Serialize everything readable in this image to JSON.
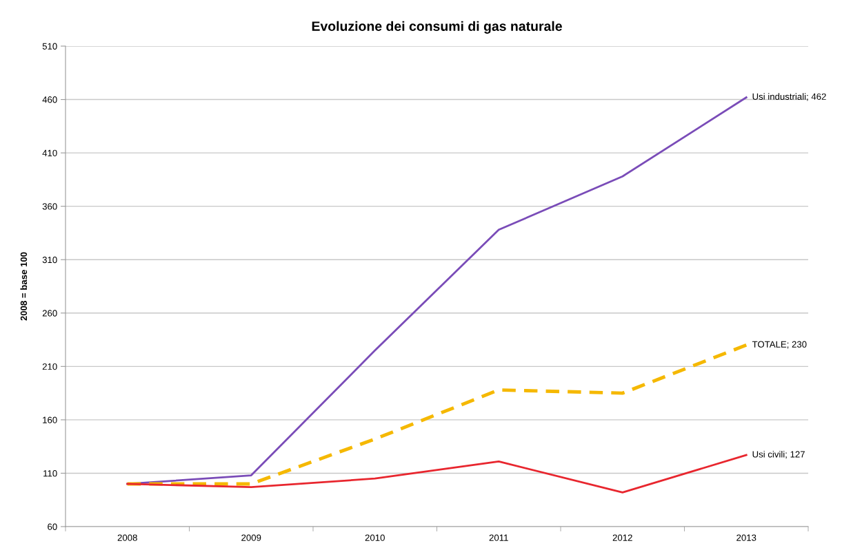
{
  "chart_data": {
    "type": "line",
    "title": "Evoluzione dei consumi di gas naturale",
    "ylabel": "2008 = base 100",
    "categories": [
      "2008",
      "2009",
      "2010",
      "2011",
      "2012",
      "2013"
    ],
    "series": [
      {
        "color": "#7a4cb8",
        "values": [
          100,
          108,
          225,
          338,
          388,
          462
        ],
        "value_labels": [
          null,
          null,
          null,
          null,
          null,
          "Usi industriali; 462"
        ],
        "line_style": "solid"
      },
      {
        "color": "#f5b800",
        "values": [
          100,
          100,
          142,
          188,
          185,
          230
        ],
        "value_labels": [
          null,
          null,
          null,
          null,
          null,
          "TOTALE; 230"
        ],
        "line_style": "dashed"
      },
      {
        "color": "#e8262e",
        "values": [
          100,
          97,
          105,
          121,
          92,
          127
        ],
        "value_labels": [
          null,
          null,
          null,
          null,
          null,
          "Usi civili; 127"
        ],
        "line_style": "solid"
      }
    ],
    "ylim": [
      60,
      510
    ],
    "yticks": [
      60,
      110,
      160,
      210,
      260,
      310,
      360,
      410,
      460,
      510
    ],
    "grid": "y",
    "legend": false
  }
}
